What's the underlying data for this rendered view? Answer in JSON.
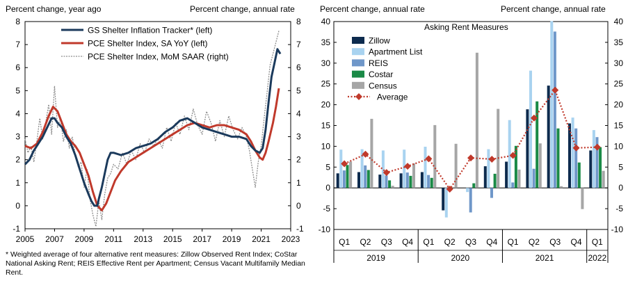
{
  "left_chart": {
    "left_axis_label": "Percent change, year ago",
    "right_axis_label": "Percent change, annual rate",
    "footnote": "* Weighted  average of four alternative rent measures: Zillow Observed Rent  Index; CoStar National  Asking Rent; REIS  Effective Rent per Apartment;  Census Vacant Multifamily  Median Rent."
  },
  "right_chart": {
    "left_axis_label": "Percent change, annual rate",
    "right_axis_label": "Percent change, annual rate"
  },
  "colors": {
    "gs_tracker": "#1b3a5c",
    "pce_yoy": "#c0392b",
    "pce_mom": "#8c8c8c",
    "zillow": "#0d2b4e",
    "apartment_list": "#a9d3f0",
    "reis": "#6f97c9",
    "costar": "#1a8a46",
    "census": "#a6a6a6",
    "average": "#c0392b"
  },
  "chart_data": [
    {
      "type": "line",
      "title": "",
      "ylabel": "Percent change, year ago",
      "y2label": "Percent change, annual rate",
      "xlim": [
        2005,
        2023
      ],
      "ylim": [
        -1,
        8
      ],
      "y2lim": [
        -1,
        8
      ],
      "xticks": [
        "2005",
        "2007",
        "2009",
        "2011",
        "2013",
        "2015",
        "2017",
        "2019",
        "2021",
        "2023"
      ],
      "yticks": [
        "-1",
        "0",
        "1",
        "2",
        "3",
        "4",
        "5",
        "6",
        "7",
        "8"
      ],
      "y2ticks": [
        "-1",
        "0",
        "1",
        "2",
        "3",
        "4",
        "5",
        "6",
        "7",
        "8"
      ],
      "series": [
        {
          "name": "GS Shelter Inflation Tracker* (left)",
          "x": [
            2005.0,
            2005.3,
            2005.6,
            2005.9,
            2006.2,
            2006.5,
            2006.8,
            2007.0,
            2007.2,
            2007.5,
            2007.8,
            2008.1,
            2008.4,
            2008.7,
            2009.0,
            2009.3,
            2009.5,
            2009.7,
            2009.9,
            2010.0,
            2010.2,
            2010.4,
            2010.6,
            2010.8,
            2011.0,
            2011.5,
            2012.0,
            2012.5,
            2013.0,
            2013.5,
            2014.0,
            2014.5,
            2015.0,
            2015.5,
            2016.0,
            2016.5,
            2017.0,
            2017.5,
            2018.0,
            2018.5,
            2019.0,
            2019.5,
            2020.0,
            2020.3,
            2020.6,
            2020.9,
            2021.1,
            2021.3,
            2021.5,
            2021.7,
            2021.9,
            2022.1,
            2022.3
          ],
          "values": [
            1.8,
            2.0,
            2.4,
            2.7,
            3.0,
            3.4,
            3.8,
            3.8,
            3.6,
            3.4,
            3.0,
            2.7,
            2.2,
            1.6,
            1.0,
            0.5,
            0.2,
            0.0,
            0.0,
            0.3,
            0.8,
            1.4,
            2.0,
            2.3,
            2.3,
            2.2,
            2.3,
            2.5,
            2.6,
            2.7,
            2.9,
            3.2,
            3.4,
            3.7,
            3.8,
            3.6,
            3.4,
            3.3,
            3.2,
            3.1,
            3.0,
            3.0,
            2.9,
            2.6,
            2.4,
            2.3,
            2.5,
            3.3,
            4.5,
            5.6,
            6.2,
            6.8,
            6.6
          ]
        },
        {
          "name": "PCE Shelter Index, SA YoY (left)",
          "x": [
            2005.0,
            2005.4,
            2005.8,
            2006.2,
            2006.6,
            2006.9,
            2007.2,
            2007.5,
            2007.8,
            2008.1,
            2008.4,
            2008.7,
            2009.0,
            2009.3,
            2009.6,
            2009.9,
            2010.2,
            2010.5,
            2010.8,
            2011.1,
            2011.5,
            2012.0,
            2012.5,
            2013.0,
            2013.5,
            2014.0,
            2014.5,
            2015.0,
            2015.5,
            2016.0,
            2016.5,
            2017.0,
            2017.5,
            2018.0,
            2018.5,
            2019.0,
            2019.5,
            2020.0,
            2020.3,
            2020.6,
            2020.9,
            2021.1,
            2021.3,
            2021.5,
            2021.8,
            2022.0,
            2022.2
          ],
          "values": [
            2.6,
            2.5,
            2.7,
            3.2,
            3.9,
            4.3,
            4.1,
            3.6,
            3.1,
            2.8,
            2.6,
            2.3,
            1.8,
            1.3,
            0.6,
            0.0,
            -0.2,
            0.1,
            0.6,
            1.1,
            1.5,
            1.9,
            2.1,
            2.3,
            2.5,
            2.7,
            2.9,
            3.1,
            3.3,
            3.5,
            3.6,
            3.5,
            3.4,
            3.5,
            3.5,
            3.4,
            3.3,
            3.1,
            2.8,
            2.4,
            2.1,
            2.0,
            2.3,
            2.8,
            3.6,
            4.3,
            5.1
          ]
        },
        {
          "name": "PCE Shelter Index, MoM SAAR (right)",
          "axis": "right",
          "x": [
            2005.0,
            2005.2,
            2005.4,
            2005.6,
            2005.8,
            2006.0,
            2006.2,
            2006.4,
            2006.6,
            2006.8,
            2007.0,
            2007.2,
            2007.4,
            2007.6,
            2007.8,
            2008.0,
            2008.2,
            2008.4,
            2008.6,
            2008.8,
            2009.0,
            2009.2,
            2009.4,
            2009.6,
            2009.8,
            2010.0,
            2010.2,
            2010.4,
            2010.6,
            2010.8,
            2011.0,
            2011.3,
            2011.6,
            2011.9,
            2012.2,
            2012.5,
            2012.8,
            2013.1,
            2013.4,
            2013.7,
            2014.0,
            2014.3,
            2014.6,
            2014.9,
            2015.2,
            2015.5,
            2015.8,
            2016.1,
            2016.4,
            2016.7,
            2017.0,
            2017.3,
            2017.6,
            2017.9,
            2018.2,
            2018.5,
            2018.8,
            2019.1,
            2019.4,
            2019.7,
            2020.0,
            2020.2,
            2020.4,
            2020.6,
            2020.8,
            2021.0,
            2021.2,
            2021.4,
            2021.6,
            2021.8,
            2022.0,
            2022.2
          ],
          "values": [
            2.9,
            2.3,
            2.6,
            1.9,
            2.8,
            3.8,
            2.9,
            3.6,
            4.4,
            3.1,
            5.2,
            3.4,
            3.8,
            2.8,
            3.3,
            2.5,
            3.0,
            2.2,
            1.7,
            1.9,
            0.8,
            1.6,
            0.3,
            -0.4,
            -0.9,
            0.2,
            -0.6,
            0.5,
            1.2,
            1.4,
            1.8,
            1.6,
            2.3,
            1.8,
            2.4,
            2.0,
            2.7,
            2.3,
            2.9,
            2.6,
            2.9,
            2.5,
            3.4,
            2.8,
            3.6,
            3.1,
            3.9,
            3.3,
            4.2,
            3.5,
            3.1,
            4.1,
            3.6,
            2.8,
            3.7,
            3.0,
            3.9,
            3.3,
            2.9,
            3.4,
            3.0,
            2.4,
            1.6,
            0.8,
            1.9,
            2.6,
            3.8,
            4.9,
            6.1,
            6.6,
            7.1,
            7.6
          ]
        }
      ],
      "legend": "top-center"
    },
    {
      "type": "bar",
      "title": "Asking Rent Measures",
      "ylabel": "Percent change, annual rate",
      "y2label": "Percent change, annual rate",
      "ylim": [
        -10,
        40
      ],
      "yticks": [
        "-10",
        "-5",
        "0",
        "5",
        "10",
        "15",
        "20",
        "25",
        "30",
        "35",
        "40"
      ],
      "categories": [
        "Q1",
        "Q2",
        "Q3",
        "Q4",
        "Q1",
        "Q2",
        "Q3",
        "Q4",
        "Q1",
        "Q2",
        "Q3",
        "Q4",
        "Q1"
      ],
      "year_groups": [
        {
          "label": "2019",
          "count": 4
        },
        {
          "label": "2020",
          "count": 4
        },
        {
          "label": "2021",
          "count": 4
        },
        {
          "label": "2022",
          "count": 1
        }
      ],
      "series": [
        {
          "name": "Zillow",
          "values": [
            3.5,
            3.8,
            3.2,
            3.5,
            3.8,
            -5.4,
            0.0,
            5.2,
            6.3,
            18.9,
            24.6,
            15.5,
            9.0
          ]
        },
        {
          "name": "Apartment List",
          "values": [
            9.2,
            9.3,
            9.0,
            9.2,
            9.9,
            -7.1,
            -1.0,
            9.3,
            16.3,
            28.2,
            40.1,
            16.9,
            13.9
          ]
        },
        {
          "name": "REIS",
          "values": [
            4.2,
            5.4,
            3.0,
            3.7,
            3.1,
            0.0,
            -5.9,
            -2.4,
            1.3,
            4.6,
            37.6,
            14.3,
            12.2
          ]
        },
        {
          "name": "Costar",
          "values": [
            5.5,
            4.3,
            1.8,
            2.9,
            2.4,
            0.0,
            1.1,
            3.4,
            10.1,
            20.8,
            14.3,
            6.1,
            9.8
          ]
        },
        {
          "name": "Census",
          "values": [
            6.3,
            16.6,
            0.5,
            5.9,
            15.1,
            10.6,
            32.5,
            19.0,
            4.4,
            10.7,
            0.4,
            -5.1,
            4.1
          ]
        },
        {
          "name": "Average",
          "type": "line",
          "values": [
            5.8,
            8.1,
            3.7,
            5.2,
            7.0,
            -0.3,
            7.2,
            6.9,
            7.8,
            16.8,
            23.5,
            9.6,
            9.8
          ]
        }
      ],
      "legend": "top-center"
    }
  ]
}
